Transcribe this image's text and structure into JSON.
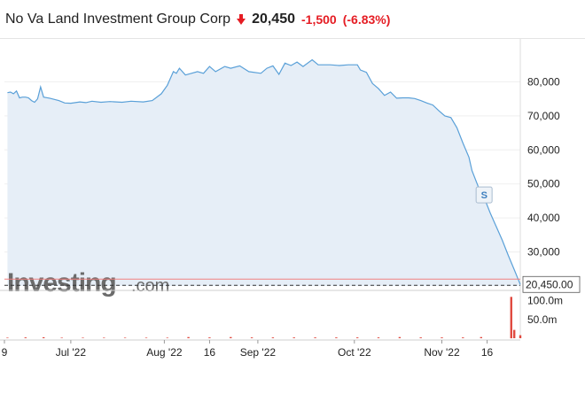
{
  "header": {
    "name": "No Va Land Investment Group Corp",
    "price": "20,450",
    "change": "-1,500",
    "change_pct": "(-6.83%)",
    "direction_icon": "down-arrow-icon",
    "negative_color": "#e51c23"
  },
  "logo": {
    "main": "Investing",
    "suffix": ".com"
  },
  "marker_label": "S",
  "colors": {
    "line": "#5aa0d8",
    "area": "#e6eef7",
    "current_line": "#f08080",
    "volume": "#e04a40"
  },
  "chart_data": [
    {
      "type": "area",
      "series": [
        {
          "points": [
            [
              "2022-06-10",
              76800
            ],
            [
              "2022-06-11",
              77000
            ],
            [
              "2022-06-12",
              76500
            ],
            [
              "2022-06-13",
              77300
            ],
            [
              "2022-06-14",
              75300
            ],
            [
              "2022-06-15",
              75500
            ],
            [
              "2022-06-16",
              75500
            ],
            [
              "2022-06-17",
              75300
            ],
            [
              "2022-06-18",
              74500
            ],
            [
              "2022-06-19",
              74000
            ],
            [
              "2022-06-20",
              75000
            ],
            [
              "2022-06-21",
              78500
            ],
            [
              "2022-06-22",
              75500
            ],
            [
              "2022-06-24",
              75200
            ],
            [
              "2022-06-27",
              74500
            ],
            [
              "2022-06-29",
              73800
            ],
            [
              "2022-07-01",
              73700
            ],
            [
              "2022-07-04",
              74100
            ],
            [
              "2022-07-06",
              73900
            ],
            [
              "2022-07-08",
              74300
            ],
            [
              "2022-07-11",
              74000
            ],
            [
              "2022-07-14",
              74200
            ],
            [
              "2022-07-18",
              74000
            ],
            [
              "2022-07-21",
              74300
            ],
            [
              "2022-07-25",
              74100
            ],
            [
              "2022-07-28",
              74500
            ],
            [
              "2022-07-31",
              76500
            ],
            [
              "2022-08-02",
              79000
            ],
            [
              "2022-08-04",
              83000
            ],
            [
              "2022-08-05",
              82500
            ],
            [
              "2022-08-06",
              84000
            ],
            [
              "2022-08-08",
              82000
            ],
            [
              "2022-08-10",
              82500
            ],
            [
              "2022-08-12",
              83000
            ],
            [
              "2022-08-14",
              82500
            ],
            [
              "2022-08-16",
              84500
            ],
            [
              "2022-08-18",
              83000
            ],
            [
              "2022-08-21",
              84500
            ],
            [
              "2022-08-23",
              84000
            ],
            [
              "2022-08-26",
              84700
            ],
            [
              "2022-08-29",
              83000
            ],
            [
              "2022-09-02",
              82500
            ],
            [
              "2022-09-04",
              84000
            ],
            [
              "2022-09-06",
              84700
            ],
            [
              "2022-09-08",
              82200
            ],
            [
              "2022-09-10",
              85500
            ],
            [
              "2022-09-12",
              84800
            ],
            [
              "2022-09-14",
              85800
            ],
            [
              "2022-09-16",
              84500
            ],
            [
              "2022-09-19",
              86500
            ],
            [
              "2022-09-21",
              85000
            ],
            [
              "2022-09-25",
              85000
            ],
            [
              "2022-09-28",
              84800
            ],
            [
              "2022-10-01",
              85000
            ],
            [
              "2022-10-04",
              85000
            ],
            [
              "2022-10-05",
              83500
            ],
            [
              "2022-10-07",
              82800
            ],
            [
              "2022-10-09",
              79500
            ],
            [
              "2022-10-11",
              78000
            ],
            [
              "2022-10-13",
              76000
            ],
            [
              "2022-10-15",
              77000
            ],
            [
              "2022-10-17",
              75200
            ],
            [
              "2022-10-19",
              75300
            ],
            [
              "2022-10-21",
              75300
            ],
            [
              "2022-10-23",
              75100
            ],
            [
              "2022-10-25",
              74500
            ],
            [
              "2022-10-27",
              73800
            ],
            [
              "2022-10-29",
              73200
            ],
            [
              "2022-10-31",
              71500
            ],
            [
              "2022-11-02",
              70000
            ],
            [
              "2022-11-04",
              69500
            ],
            [
              "2022-11-06",
              66500
            ],
            [
              "2022-11-08",
              62000
            ],
            [
              "2022-11-10",
              57800
            ],
            [
              "2022-11-11",
              53900
            ],
            [
              "2022-11-13",
              49300
            ],
            [
              "2022-11-15",
              46000
            ],
            [
              "2022-11-17",
              41500
            ],
            [
              "2022-11-19",
              37500
            ],
            [
              "2022-11-21",
              33500
            ],
            [
              "2022-11-23",
              29000
            ],
            [
              "2022-11-25",
              24800
            ],
            [
              "2022-11-27",
              20450
            ]
          ]
        }
      ],
      "ylim": [
        20000,
        90000
      ],
      "xlim": [
        "2022-06-09",
        "2022-11-27"
      ],
      "y_ticks": [
        {
          "value": 80000,
          "label": "80,000"
        },
        {
          "value": 70000,
          "label": "70,000"
        },
        {
          "value": 60000,
          "label": "60,000"
        },
        {
          "value": 50000,
          "label": "50,000"
        },
        {
          "value": 40000,
          "label": "40,000"
        },
        {
          "value": 30000,
          "label": "30,000"
        }
      ],
      "x_ticks": [
        {
          "date": "2022-06-09",
          "label": "9"
        },
        {
          "date": "2022-07-01",
          "label": "Jul '22"
        },
        {
          "date": "2022-08-01",
          "label": "Aug '22"
        },
        {
          "date": "2022-08-16",
          "label": "16"
        },
        {
          "date": "2022-09-01",
          "label": "Sep '22"
        },
        {
          "date": "2022-10-03",
          "label": "Oct '22"
        },
        {
          "date": "2022-11-01",
          "label": "Nov '22"
        },
        {
          "date": "2022-11-16",
          "label": "16"
        }
      ],
      "current_value": 20450,
      "current_label": "20,450.00",
      "split_marker_date": "2022-11-15"
    },
    {
      "type": "bar",
      "ylim": [
        0,
        120
      ],
      "unit": "m",
      "y_ticks": [
        {
          "value": 100,
          "label": "100.0m"
        },
        {
          "value": 50,
          "label": "50.0m"
        }
      ],
      "bars": [
        [
          "2022-06-10",
          1.5
        ],
        [
          "2022-06-16",
          2
        ],
        [
          "2022-06-22",
          2.5
        ],
        [
          "2022-06-28",
          1.5
        ],
        [
          "2022-07-05",
          1.5
        ],
        [
          "2022-07-12",
          1.5
        ],
        [
          "2022-07-19",
          1.5
        ],
        [
          "2022-07-26",
          1.5
        ],
        [
          "2022-08-02",
          1.5
        ],
        [
          "2022-08-09",
          3
        ],
        [
          "2022-08-16",
          2
        ],
        [
          "2022-08-23",
          3
        ],
        [
          "2022-08-30",
          2
        ],
        [
          "2022-09-06",
          2
        ],
        [
          "2022-09-13",
          2
        ],
        [
          "2022-09-20",
          2
        ],
        [
          "2022-09-27",
          2
        ],
        [
          "2022-10-04",
          2
        ],
        [
          "2022-10-11",
          2
        ],
        [
          "2022-10-18",
          3
        ],
        [
          "2022-10-25",
          2
        ],
        [
          "2022-11-01",
          2
        ],
        [
          "2022-11-08",
          2
        ],
        [
          "2022-11-14",
          3
        ],
        [
          "2022-11-24",
          110
        ],
        [
          "2022-11-25",
          22
        ],
        [
          "2022-11-27",
          8
        ]
      ]
    }
  ]
}
